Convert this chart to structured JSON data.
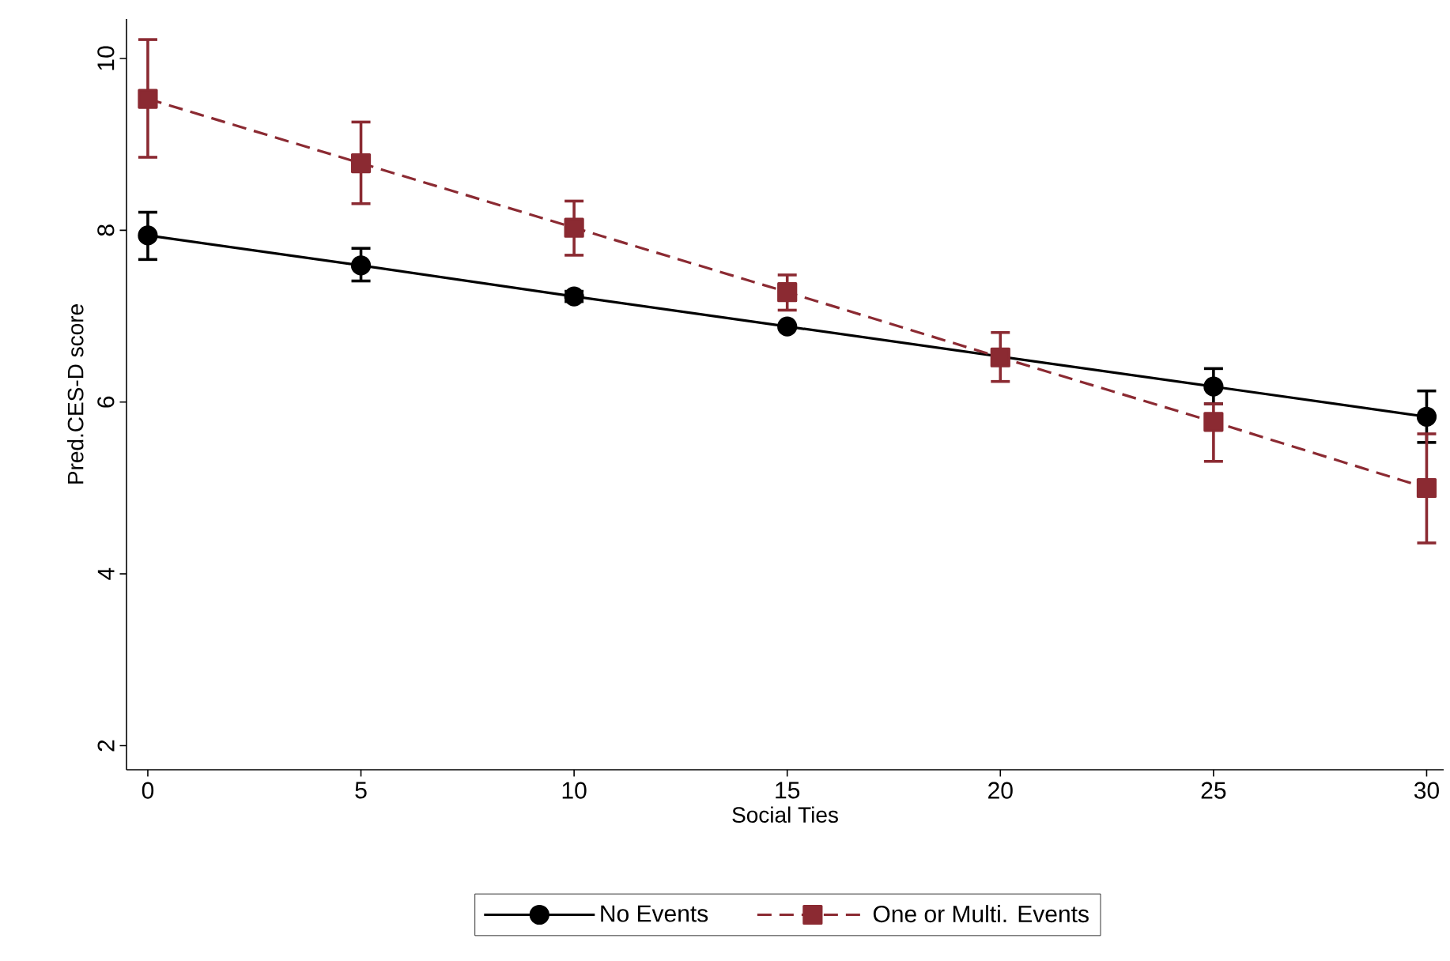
{
  "chart_data": {
    "type": "line",
    "xlabel": "Social Ties",
    "ylabel": "Pred.CES-D score",
    "x": [
      0,
      5,
      10,
      15,
      20,
      25,
      30
    ],
    "series": [
      {
        "name": "No Events",
        "color": "#000000",
        "marker": "circle",
        "line_style": "solid",
        "values": [
          7.94,
          7.59,
          7.23,
          6.88,
          null,
          6.18,
          5.83
        ],
        "errors": [
          [
            7.66,
            8.21
          ],
          [
            7.41,
            7.79
          ],
          [
            7.17,
            7.29
          ],
          null,
          null,
          [
            5.98,
            6.39
          ],
          [
            5.53,
            6.13
          ]
        ]
      },
      {
        "name": "One or Multi. Events",
        "color": "#8b2a32",
        "marker": "square",
        "line_style": "dashed",
        "values": [
          9.53,
          8.78,
          8.03,
          7.28,
          6.52,
          5.77,
          5.0
        ],
        "errors": [
          [
            8.85,
            10.22
          ],
          [
            8.31,
            9.26
          ],
          [
            7.71,
            8.34
          ],
          [
            7.07,
            7.48
          ],
          [
            6.24,
            6.81
          ],
          [
            5.31,
            5.98
          ],
          [
            4.36,
            5.63
          ]
        ]
      }
    ],
    "xlim": [
      -0.5,
      30.4
    ],
    "ylim": [
      1.72,
      10.46
    ],
    "xticks": [
      0,
      5,
      10,
      15,
      20,
      25,
      30
    ],
    "yticks": [
      2,
      4,
      6,
      8,
      10
    ],
    "legend": "bottom"
  }
}
